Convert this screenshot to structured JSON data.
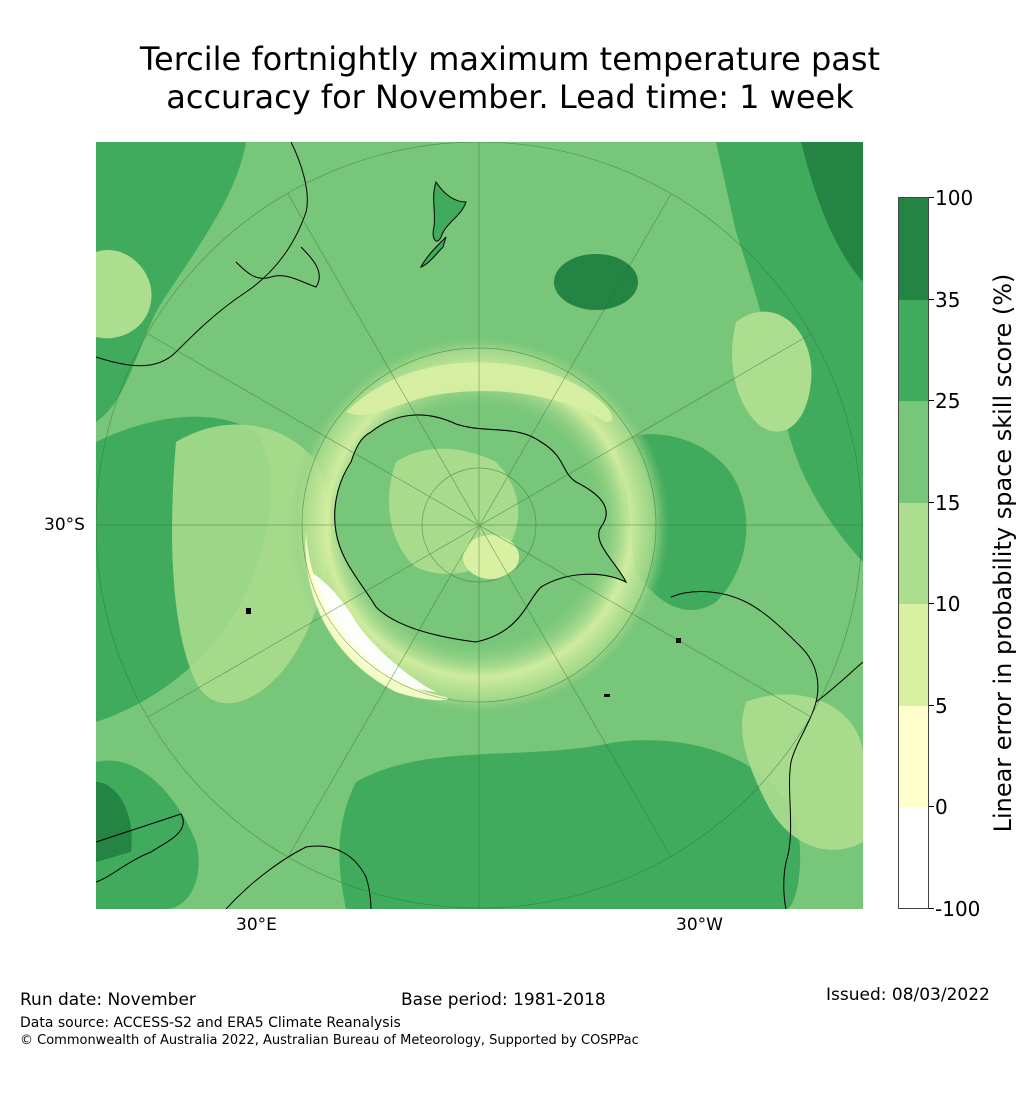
{
  "title": {
    "line1": "Tercile fortnightly maximum temperature past",
    "line2": "accuracy for November. Lead time: 1 week"
  },
  "axes": {
    "lat_label": "30°S",
    "lon_left_label": "30°E",
    "lon_right_label": "30°W"
  },
  "colorbar": {
    "title": "Linear error in probability space skill score (%)",
    "levels": [
      {
        "label": "100",
        "color": "#238443"
      },
      {
        "label": "35",
        "color": "#41ab5d"
      },
      {
        "label": "25",
        "color": "#78c679"
      },
      {
        "label": "15",
        "color": "#addd8e"
      },
      {
        "label": "10",
        "color": "#d9f0a3"
      },
      {
        "label": "5",
        "color": "#ffffcc"
      },
      {
        "label": "0",
        "color": "#ffffff"
      },
      {
        "label": "-100",
        "color": "#ffffff"
      }
    ]
  },
  "footer": {
    "run_date": "Run date: November",
    "base_period": "Base period: 1981-2018",
    "issued": "Issued: 08/03/2022",
    "data_source": "Data source: ACCESS-S2 and ERA5 Climate Reanalysis",
    "copyright": "© Commonwealth of Australia 2022, Australian Bureau of Meteorology, Supported by COSPPac"
  }
}
